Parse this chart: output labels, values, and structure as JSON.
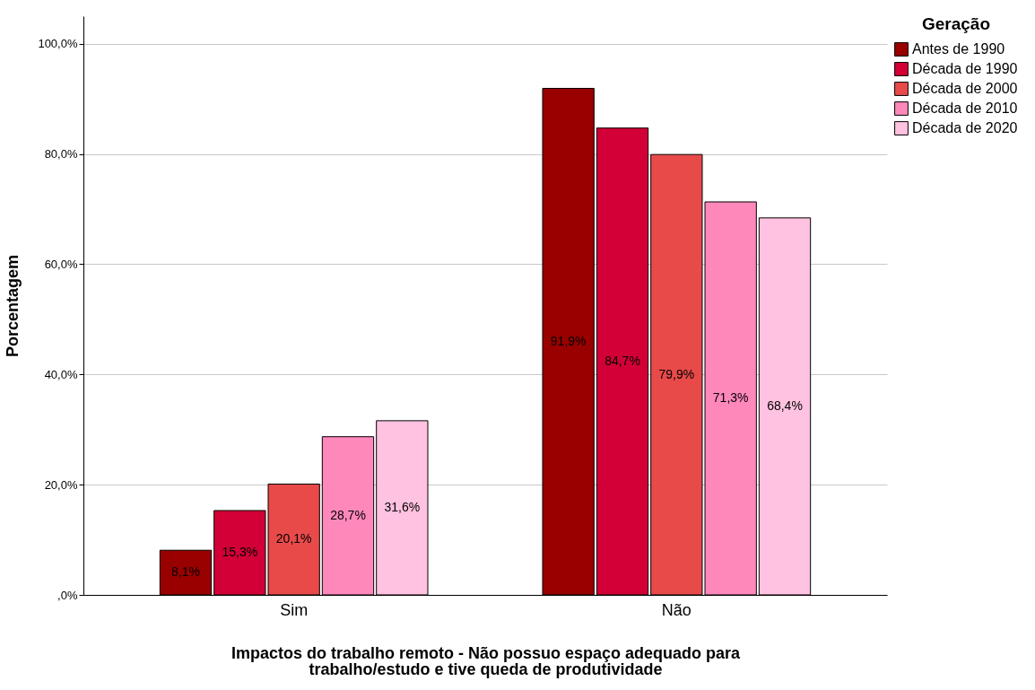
{
  "chart_data": {
    "type": "bar",
    "xlabel": "Impactos do trabalho remoto - Não possuo espaço adequado para\ntrabalho/estudo e tive queda de produtividade",
    "ylabel": "Porcentagem",
    "legend_title": "Geração",
    "categories": [
      "Sim",
      "Não"
    ],
    "series": [
      {
        "name": "Antes de 1990",
        "color": "#990000",
        "values": [
          8.1,
          91.9
        ],
        "value_labels": [
          "8,1%",
          "91,9%"
        ]
      },
      {
        "name": "Década de 1990",
        "color": "#d20036",
        "values": [
          15.3,
          84.7
        ],
        "value_labels": [
          "15,3%",
          "84,7%"
        ]
      },
      {
        "name": "Década de 2000",
        "color": "#e84a4a",
        "values": [
          20.1,
          79.9
        ],
        "value_labels": [
          "20,1%",
          "79,9%"
        ]
      },
      {
        "name": "Década de 2010",
        "color": "#ff88bb",
        "values": [
          28.7,
          71.3
        ],
        "value_labels": [
          "28,7%",
          "71,3%"
        ]
      },
      {
        "name": "Década de 2020",
        "color": "#ffc2e0",
        "values": [
          31.6,
          68.4
        ],
        "value_labels": [
          "31,6%",
          "68,4%"
        ]
      }
    ],
    "ylim": [
      0,
      105
    ],
    "yticks": [
      {
        "value": 0,
        "label": ",0%"
      },
      {
        "value": 20,
        "label": "20,0%"
      },
      {
        "value": 40,
        "label": "40,0%"
      },
      {
        "value": 60,
        "label": "60,0%"
      },
      {
        "value": 80,
        "label": "80,0%"
      },
      {
        "value": 100,
        "label": "100,0%"
      }
    ],
    "grid": "y",
    "legend": "top right"
  }
}
